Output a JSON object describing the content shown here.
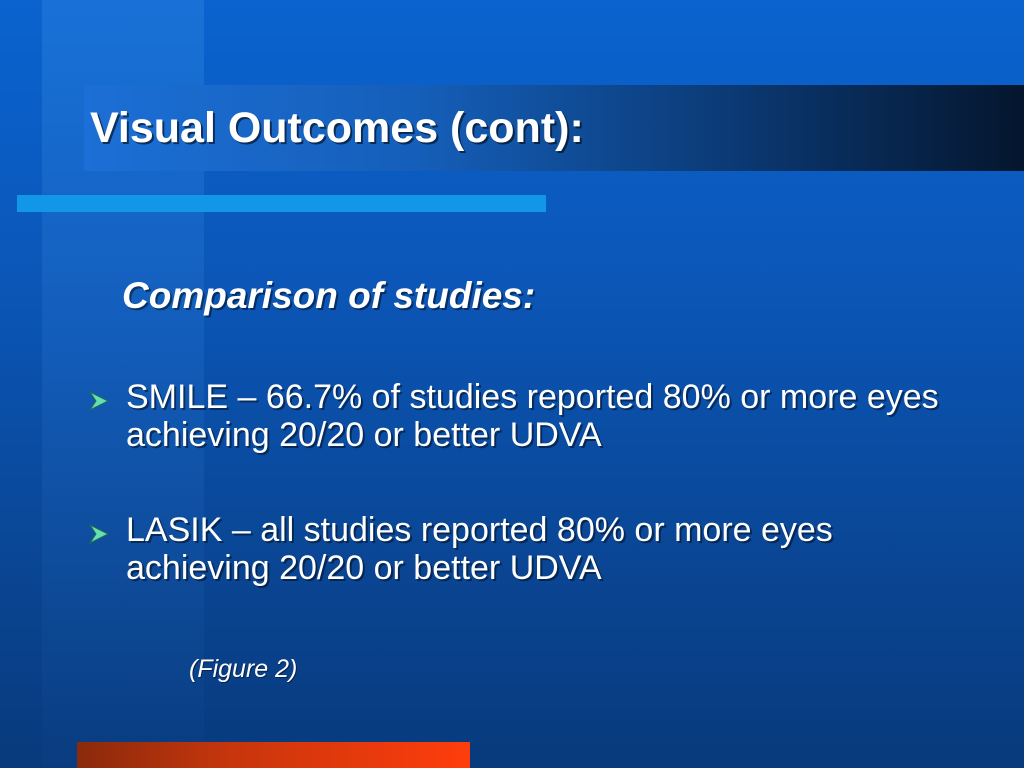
{
  "slide": {
    "title": "Visual Outcomes (cont):",
    "subtitle": "Comparison of studies:",
    "bullets": [
      {
        "text": "SMILE – 66.7% of studies reported 80% or more eyes achieving 20/20 or better UDVA",
        "icon": "arrowhead-bullet-icon"
      },
      {
        "text": "LASIK – all studies reported 80% or more eyes achieving 20/20 or better UDVA",
        "icon": "arrowhead-bullet-icon"
      }
    ],
    "caption": "(Figure 2)"
  },
  "colors": {
    "background": "#0b57b9",
    "accent_line": "#1296e8",
    "bottom_bar": "#ff3d0c",
    "bullet_icon": "#66e0b0"
  }
}
